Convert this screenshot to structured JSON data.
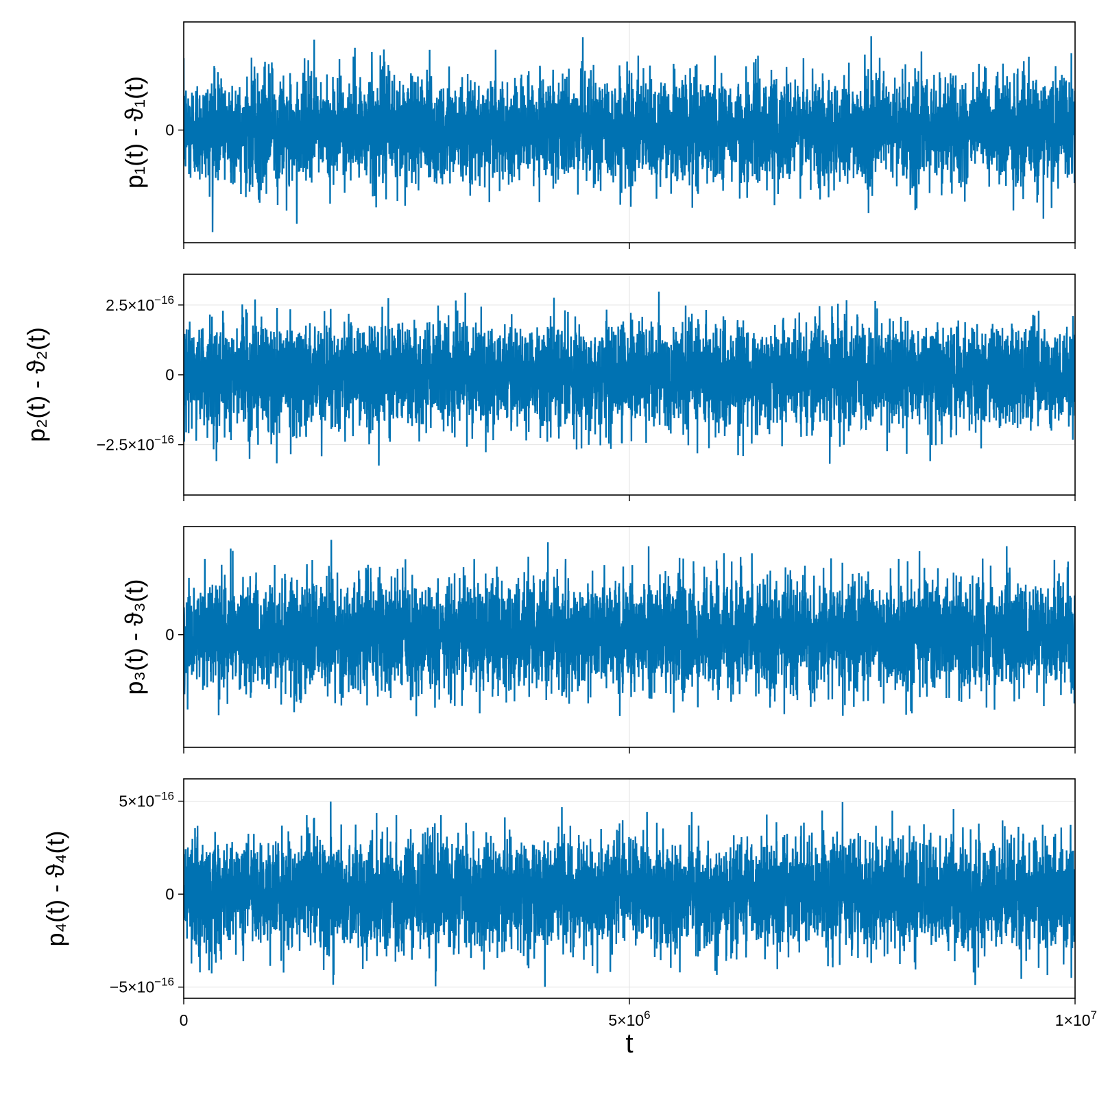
{
  "chart_data": {
    "type": "line",
    "xlabel": "t",
    "xlim": [
      0,
      10000000
    ],
    "x_ticks": [
      {
        "value": 0,
        "label": "0"
      },
      {
        "value": 5000000,
        "label": "5×10",
        "sup": "6"
      },
      {
        "value": 10000000,
        "label": "1×10",
        "sup": "7"
      }
    ],
    "color": "#0072b2",
    "panels": [
      {
        "ylabel": "p₁(t) - ϑ₁(t)",
        "ylim": [
          -5e-16,
          4.8e-16
        ],
        "y_ticks": [
          {
            "value": 0,
            "label": "0"
          }
        ],
        "series": {
          "n_points": 6000,
          "std": 1.15e-16,
          "min": -4.6e-16,
          "max": 4.3e-16
        }
      },
      {
        "ylabel": "p₂(t) - ϑ₂(t)",
        "ylim": [
          -4.3e-16,
          3.6e-16
        ],
        "y_ticks": [
          {
            "value": 2.5e-16,
            "label": "2.5×10",
            "sup": "−16"
          },
          {
            "value": 0,
            "label": "0"
          },
          {
            "value": -2.5e-16,
            "label": "−2.5×10",
            "sup": "−16"
          }
        ],
        "series": {
          "n_points": 6000,
          "std": 9e-17,
          "min": -3.9e-16,
          "max": 3.3e-16
        }
      },
      {
        "ylabel": "p₃(t) - ϑ₃(t)",
        "ylim": [
          -5e-16,
          4.8e-16
        ],
        "y_ticks": [
          {
            "value": 0,
            "label": "0"
          }
        ],
        "series": {
          "n_points": 6000,
          "std": 1.2e-16,
          "min": -4.5e-16,
          "max": 4.3e-16
        }
      },
      {
        "ylabel": "p₄(t) - ϑ₄(t)",
        "ylim": [
          -5.6e-16,
          6.2e-16
        ],
        "y_ticks": [
          {
            "value": 5e-16,
            "label": "5×10",
            "sup": "−16"
          },
          {
            "value": 0,
            "label": "0"
          },
          {
            "value": -5e-16,
            "label": "−5×10",
            "sup": "−16"
          }
        ],
        "series": {
          "n_points": 6000,
          "std": 1.45e-16,
          "min": -5.2e-16,
          "max": 5.5e-16
        }
      }
    ]
  }
}
